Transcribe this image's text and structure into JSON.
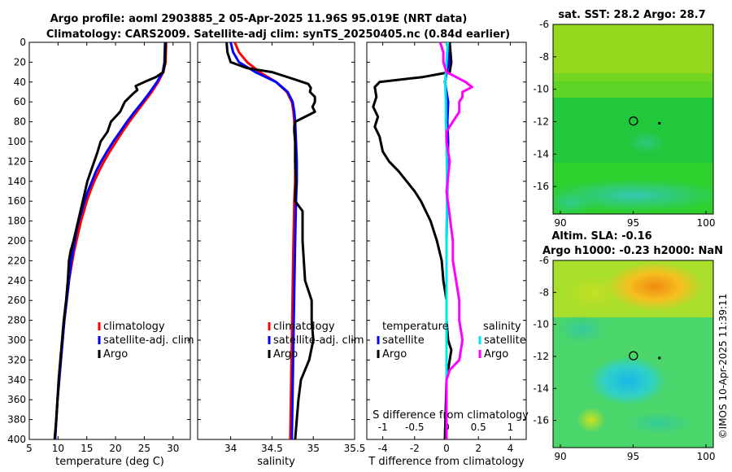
{
  "title_line1": "Argo profile: aoml 2903885_2 05-Apr-2025 11.96S 95.019E (NRT data)",
  "title_line2": "Climatology: CARS2009. Satellite-adj clim: synTS_20250405.nc (0.84d earlier)",
  "copyright": "©IMOS 10-Apr-2025 11:39:11",
  "colors": {
    "climatology": "#ff0000",
    "satellite": "#0000ff",
    "argo": "#000000",
    "sat_s": "#00e5ee",
    "argo_s": "#ff00ff"
  },
  "chart_data": [
    {
      "id": "temperature",
      "type": "line",
      "xlabel": "temperature (deg C)",
      "ylabel": "",
      "xlim": [
        5,
        33
      ],
      "ylim": [
        400,
        0
      ],
      "xticks": [
        5,
        10,
        15,
        20,
        25,
        30
      ],
      "yticks": [
        0,
        20,
        40,
        60,
        80,
        100,
        120,
        140,
        160,
        180,
        200,
        220,
        240,
        260,
        280,
        300,
        320,
        340,
        360,
        380,
        400
      ],
      "legend": [
        "climatology",
        "satellite-adj. clim",
        "Argo"
      ],
      "series": [
        {
          "name": "climatology",
          "color": "#ff0000",
          "depth": [
            0,
            20,
            30,
            40,
            50,
            60,
            70,
            80,
            90,
            100,
            110,
            120,
            130,
            140,
            150,
            160,
            170,
            180,
            190,
            200,
            210,
            220,
            230,
            240,
            260,
            280,
            300,
            320,
            340,
            360,
            380,
            400
          ],
          "values": [
            28.8,
            28.7,
            28.3,
            27.4,
            26.3,
            25.0,
            23.7,
            22.4,
            21.2,
            20.1,
            19.0,
            18.0,
            17.1,
            16.3,
            15.6,
            15.0,
            14.5,
            14.0,
            13.6,
            13.2,
            12.8,
            12.5,
            12.2,
            11.9,
            11.5,
            11.1,
            10.8,
            10.5,
            10.2,
            9.9,
            9.7,
            9.5
          ]
        },
        {
          "name": "satellite-adj. clim",
          "color": "#0000ff",
          "depth": [
            0,
            20,
            30,
            40,
            50,
            60,
            70,
            80,
            90,
            100,
            110,
            120,
            130,
            140,
            150,
            160,
            170,
            180,
            190,
            200,
            210,
            220,
            230,
            240,
            260,
            280,
            300,
            320,
            340,
            360,
            380,
            400
          ],
          "values": [
            28.6,
            28.5,
            28.2,
            27.2,
            26.0,
            24.7,
            23.3,
            22.0,
            20.8,
            19.6,
            18.5,
            17.5,
            16.6,
            15.9,
            15.2,
            14.6,
            14.1,
            13.6,
            13.2,
            12.9,
            12.6,
            12.3,
            12.1,
            11.9,
            11.5,
            11.1,
            10.8,
            10.5,
            10.2,
            9.9,
            9.7,
            9.5
          ]
        },
        {
          "name": "Argo",
          "color": "#000000",
          "depth": [
            0,
            20,
            30,
            35,
            40,
            44,
            48,
            52,
            60,
            70,
            80,
            90,
            100,
            110,
            120,
            140,
            160,
            180,
            200,
            210,
            220,
            230,
            240,
            260,
            280,
            300,
            320,
            340,
            360,
            380,
            400
          ],
          "values": [
            28.7,
            28.6,
            28.3,
            27.0,
            25.0,
            23.5,
            23.8,
            23.0,
            21.6,
            20.8,
            19.2,
            18.6,
            17.4,
            16.9,
            16.3,
            15.1,
            14.3,
            13.5,
            12.7,
            12.2,
            11.9,
            11.8,
            11.7,
            11.4,
            11.0,
            10.7,
            10.4,
            10.1,
            9.9,
            9.7,
            9.4
          ]
        }
      ]
    },
    {
      "id": "salinity",
      "type": "line",
      "xlabel": "salinity",
      "ylabel": "",
      "xlim": [
        33.6,
        35.5
      ],
      "ylim": [
        400,
        0
      ],
      "xticks": [
        34,
        34.5,
        35,
        35.5
      ],
      "xticklabels": [
        "34",
        "34.5",
        "35",
        "35.5"
      ],
      "legend": [
        "climatology",
        "satellite-adj. clim",
        "Argo"
      ],
      "series": [
        {
          "name": "climatology",
          "color": "#ff0000",
          "depth": [
            0,
            10,
            20,
            30,
            40,
            50,
            60,
            70,
            80,
            100,
            120,
            140,
            160,
            200,
            250,
            300,
            350,
            400
          ],
          "values": [
            34.05,
            34.1,
            34.2,
            34.35,
            34.55,
            34.68,
            34.74,
            34.76,
            34.77,
            34.78,
            34.78,
            34.78,
            34.77,
            34.76,
            34.75,
            34.74,
            34.73,
            34.72
          ]
        },
        {
          "name": "satellite-adj. clim",
          "color": "#0000ff",
          "depth": [
            0,
            10,
            20,
            30,
            40,
            50,
            60,
            70,
            80,
            100,
            120,
            140,
            160,
            200,
            250,
            300,
            350,
            400
          ],
          "values": [
            34.0,
            34.03,
            34.1,
            34.3,
            34.55,
            34.69,
            34.75,
            34.77,
            34.78,
            34.79,
            34.8,
            34.8,
            34.79,
            34.78,
            34.77,
            34.76,
            34.75,
            34.74
          ]
        },
        {
          "name": "Argo",
          "color": "#000000",
          "depth": [
            0,
            10,
            20,
            26,
            30,
            34,
            38,
            42,
            46,
            50,
            55,
            60,
            65,
            70,
            75,
            80,
            85,
            90,
            100,
            120,
            140,
            160,
            170,
            200,
            240,
            260,
            280,
            300,
            320,
            340,
            360,
            380,
            400
          ],
          "values": [
            33.95,
            33.96,
            34.0,
            34.2,
            34.5,
            34.65,
            34.8,
            34.94,
            34.97,
            34.96,
            35.02,
            35.02,
            34.99,
            35.02,
            34.9,
            34.78,
            34.77,
            34.77,
            34.78,
            34.78,
            34.79,
            34.78,
            34.87,
            34.87,
            34.9,
            34.98,
            34.98,
            35.0,
            34.95,
            34.85,
            34.82,
            34.8,
            34.78
          ]
        }
      ]
    },
    {
      "id": "difference",
      "type": "line",
      "xlabel": "T difference from climatology",
      "xlabel_top": "S difference from climatology",
      "xlim": [
        -5,
        5
      ],
      "ylim": [
        400,
        0
      ],
      "xticks": [
        -4,
        -2,
        0,
        2,
        4
      ],
      "xticks_top": [
        -1,
        -0.5,
        0,
        0.5,
        1
      ],
      "xticklabels_top": [
        "-1",
        "-0.5",
        "0",
        "0.5",
        "1"
      ],
      "legend_headers": [
        "temperature",
        "salinity"
      ],
      "legend": [
        "satellite",
        "Argo",
        "satellite",
        "Argo"
      ],
      "series": [
        {
          "name": "satellite T",
          "color": "#0000ff",
          "axis": "T",
          "depth": [
            0,
            20,
            40,
            60,
            80,
            100,
            150,
            200,
            300,
            400
          ],
          "values": [
            0.2,
            0.15,
            -0.1,
            0.1,
            0.05,
            0.1,
            0.05,
            0.0,
            0.0,
            0.0
          ]
        },
        {
          "name": "Argo T",
          "color": "#000000",
          "axis": "T",
          "depth": [
            0,
            20,
            30,
            35,
            40,
            45,
            55,
            65,
            75,
            85,
            95,
            110,
            120,
            130,
            140,
            150,
            160,
            170,
            180,
            200,
            220,
            240,
            260,
            280,
            300,
            310,
            320,
            330,
            340,
            400
          ],
          "values": [
            0.2,
            0.3,
            0.2,
            -1.5,
            -4.2,
            -4.5,
            -4.4,
            -4.6,
            -4.3,
            -4.5,
            -4.2,
            -4.0,
            -3.6,
            -3.0,
            -2.5,
            -2.0,
            -1.6,
            -1.3,
            -1.0,
            -0.6,
            -0.3,
            -0.2,
            0.0,
            0.0,
            0.1,
            0.3,
            0.2,
            0.1,
            0.0,
            -0.1
          ]
        },
        {
          "name": "satellite S",
          "color": "#00e5ee",
          "axis": "S",
          "depth": [
            0,
            20,
            40,
            60,
            80,
            100,
            150,
            200,
            300,
            400
          ],
          "values": [
            0.02,
            0.0,
            -0.02,
            -0.01,
            -0.01,
            0.0,
            0.01,
            0.0,
            0.0,
            0.0
          ]
        },
        {
          "name": "Argo S",
          "color": "#ff00ff",
          "axis": "S",
          "depth": [
            0,
            10,
            20,
            30,
            40,
            45,
            50,
            55,
            60,
            70,
            80,
            90,
            100,
            120,
            150,
            200,
            220,
            240,
            260,
            280,
            300,
            320,
            330,
            340,
            400
          ],
          "values": [
            -0.1,
            -0.05,
            -0.05,
            0.0,
            0.3,
            0.4,
            0.25,
            0.25,
            0.2,
            0.2,
            0.1,
            0.0,
            0.0,
            0.05,
            0.0,
            0.1,
            0.1,
            0.15,
            0.2,
            0.2,
            0.25,
            0.2,
            0.05,
            0.0,
            0.0
          ]
        }
      ]
    },
    {
      "id": "sst_map",
      "type": "heatmap",
      "title": "sat. SST: 28.2  Argo: 28.7",
      "xlim": [
        89.5,
        100.5
      ],
      "ylim": [
        -17.7,
        -6
      ],
      "xticks": [
        90,
        95,
        100
      ],
      "yticks": [
        -6,
        -8,
        -10,
        -12,
        -14,
        -16
      ],
      "argo_position": [
        95.019,
        -11.96
      ],
      "marker_dot": [
        96.8,
        -12.1
      ]
    },
    {
      "id": "sla_map",
      "type": "heatmap",
      "title": "Altim. SLA: -0.16",
      "subtitle": "Argo h1000: -0.23 h2000: NaN",
      "xlim": [
        89.5,
        100.5
      ],
      "ylim": [
        -17.7,
        -6
      ],
      "xticks": [
        90,
        95,
        100
      ],
      "yticks": [
        -6,
        -8,
        -10,
        -12,
        -14,
        -16
      ],
      "argo_position": [
        95.019,
        -11.96
      ],
      "marker_dot": [
        96.8,
        -12.1
      ]
    }
  ]
}
